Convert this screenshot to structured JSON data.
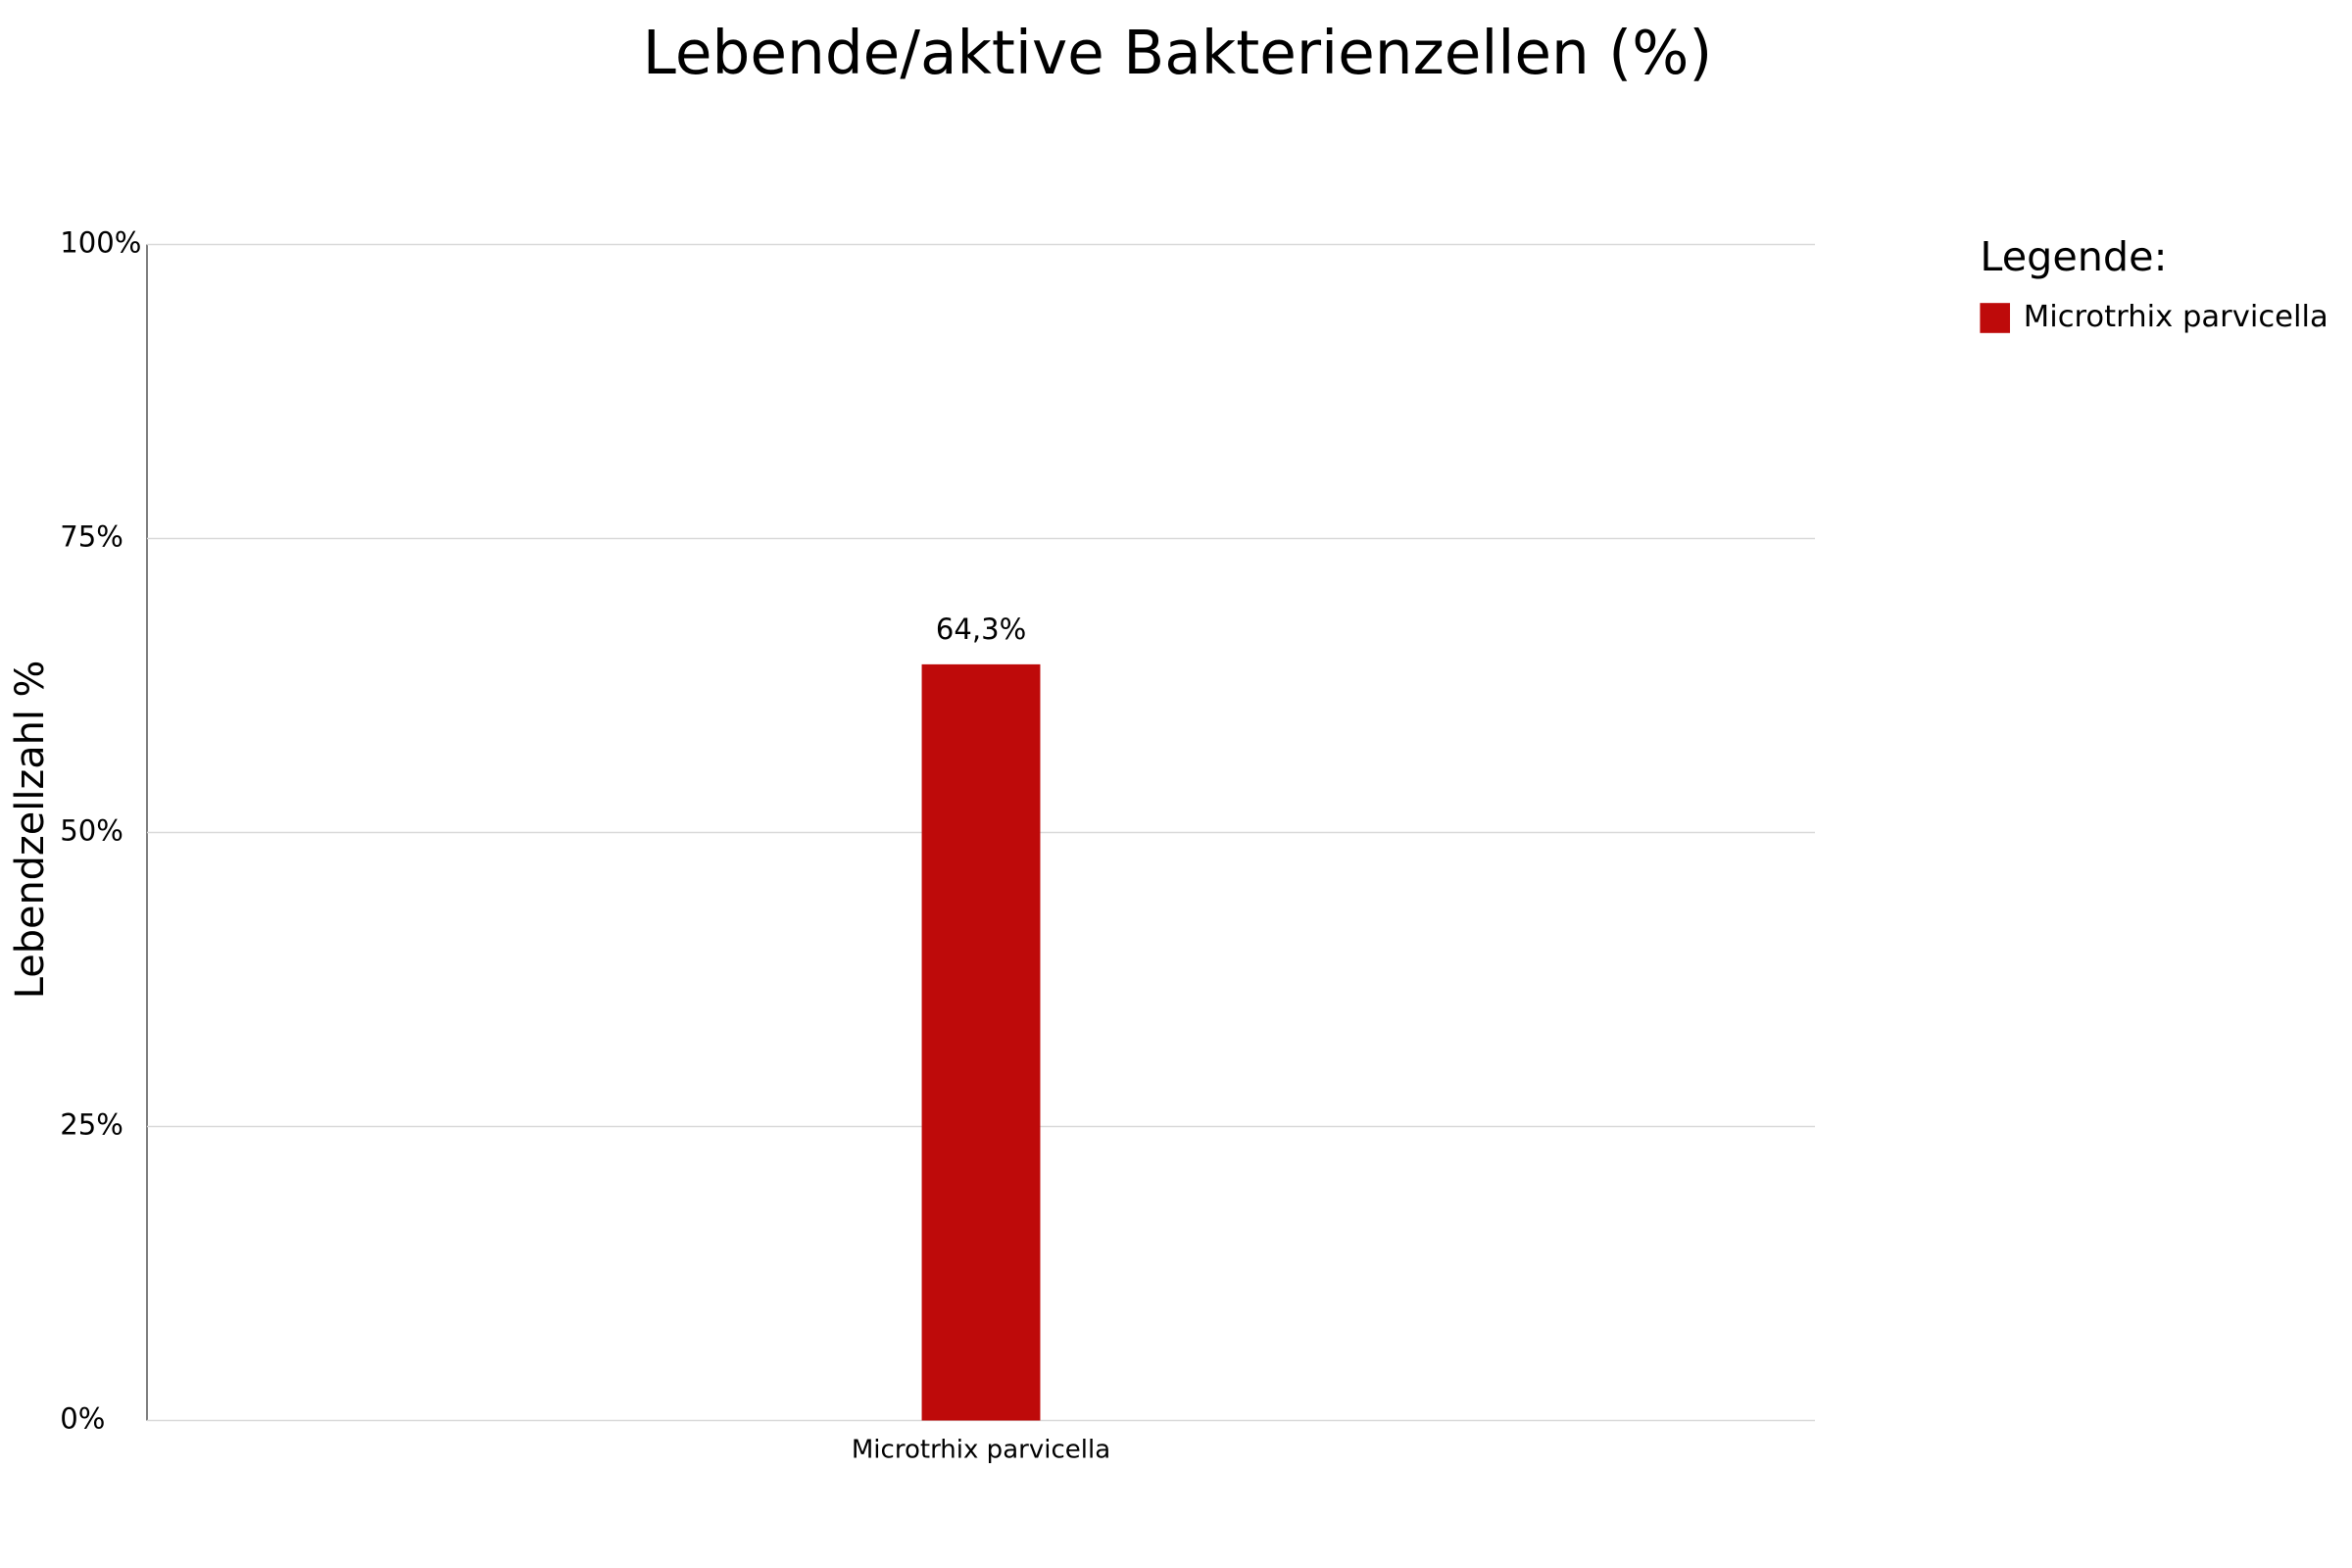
{
  "chart_data": {
    "type": "bar",
    "title": "Lebende/aktive Bakterienzellen (%)",
    "y_label": "Lebendzellzahl %",
    "categories": [
      "Microtrhix parvicella"
    ],
    "series": [
      {
        "name": "Microtrhix parvicella",
        "color": "#be0a0a",
        "values": [
          64.3
        ],
        "value_labels": [
          "64,3%"
        ]
      }
    ],
    "ylim": [
      0,
      100
    ],
    "yticks": [
      {
        "value": 0,
        "label": "0%"
      },
      {
        "value": 25,
        "label": "25%"
      },
      {
        "value": 50,
        "label": "50%"
      },
      {
        "value": 75,
        "label": "75%"
      },
      {
        "value": 100,
        "label": "100%"
      }
    ],
    "grid": true,
    "legend_title": "Legende:",
    "legend": "right"
  }
}
